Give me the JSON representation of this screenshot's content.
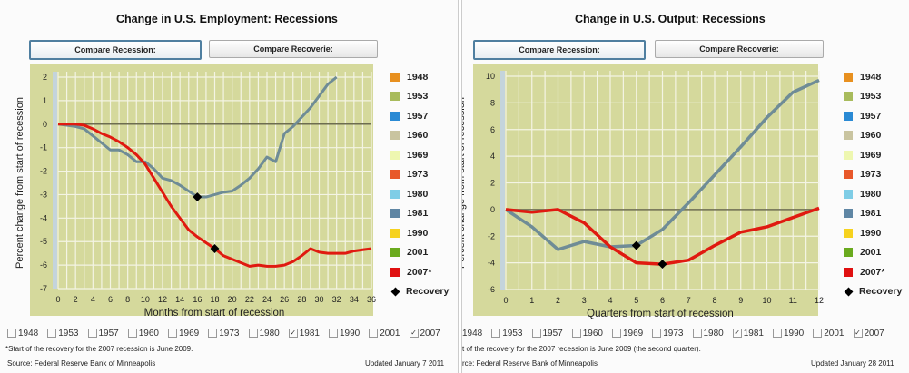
{
  "legend": {
    "items": [
      {
        "label": "1948",
        "color": "#e8901f"
      },
      {
        "label": "1953",
        "color": "#a8bb5c"
      },
      {
        "label": "1957",
        "color": "#2a8ad4"
      },
      {
        "label": "1960",
        "color": "#c9c4a0"
      },
      {
        "label": "1969",
        "color": "#eef7b0"
      },
      {
        "label": "1973",
        "color": "#e8582a"
      },
      {
        "label": "1980",
        "color": "#7fcde6"
      },
      {
        "label": "1981",
        "color": "#5f86a4"
      },
      {
        "label": "1990",
        "color": "#f6d21e"
      },
      {
        "label": "2001",
        "color": "#6aaa1e"
      },
      {
        "label": "2007*",
        "color": "#e01010"
      }
    ],
    "recovery_label": "Recovery"
  },
  "checkboxes": [
    {
      "label": "1948",
      "checked": false
    },
    {
      "label": "1953",
      "checked": false
    },
    {
      "label": "1957",
      "checked": false
    },
    {
      "label": "1960",
      "checked": false
    },
    {
      "label": "1969",
      "checked": false
    },
    {
      "label": "1973",
      "checked": false
    },
    {
      "label": "1980",
      "checked": false
    },
    {
      "label": "1981",
      "checked": true
    },
    {
      "label": "1990",
      "checked": false
    },
    {
      "label": "2001",
      "checked": false
    },
    {
      "label": "2007",
      "checked": true
    }
  ],
  "panels": [
    {
      "buttons": [
        "Compare Recession:",
        "Compare Recoverie:"
      ],
      "note": "*Start of the recovery for the 2007 recession is June 2009.",
      "source": "Source: Federal Reserve Bank of Minneapolis",
      "updated": "Updated January 7 2011"
    },
    {
      "buttons": [
        "Compare Recession:",
        "Compare Recoverie:"
      ],
      "note": "t of the recovery for the 2007 recession is June 2009 (the second quarter).",
      "source": "rce: Federal Reserve Bank of Minneapolis",
      "updated": "Updated January 28 2011"
    }
  ],
  "chart_data": [
    {
      "type": "line",
      "title": "Change in U.S. Employment: Recessions",
      "xlabel": "Months from start of recession",
      "ylabel": "Percent change from start of recession",
      "xlim": [
        0,
        36
      ],
      "ylim": [
        -7,
        2
      ],
      "xticks": [
        0,
        2,
        4,
        6,
        8,
        10,
        12,
        14,
        16,
        18,
        20,
        22,
        24,
        26,
        28,
        30,
        32,
        34,
        36
      ],
      "yticks": [
        2,
        1,
        0,
        -1,
        -2,
        -3,
        -4,
        -5,
        -6,
        -7
      ],
      "grid": true,
      "legend": "right",
      "series": [
        {
          "name": "1981",
          "color": "#6f8c96",
          "x": [
            0,
            1,
            2,
            3,
            4,
            5,
            6,
            7,
            8,
            9,
            10,
            11,
            12,
            13,
            14,
            15,
            16,
            17,
            18,
            19,
            20,
            21,
            22,
            23,
            24,
            25,
            26,
            27,
            28,
            29,
            30,
            31,
            32
          ],
          "y": [
            0,
            -0.05,
            -0.1,
            -0.2,
            -0.5,
            -0.8,
            -1.1,
            -1.1,
            -1.3,
            -1.6,
            -1.6,
            -1.9,
            -2.3,
            -2.4,
            -2.6,
            -2.85,
            -3.1,
            -3.1,
            -3.0,
            -2.9,
            -2.85,
            -2.6,
            -2.3,
            -1.9,
            -1.4,
            -1.6,
            -0.4,
            -0.1,
            0.3,
            0.7,
            1.2,
            1.7,
            2.0
          ],
          "recovery": [
            16,
            -3.1
          ]
        },
        {
          "name": "2007*",
          "color": "#e01a10",
          "x": [
            0,
            1,
            2,
            3,
            4,
            5,
            6,
            7,
            8,
            9,
            10,
            11,
            12,
            13,
            14,
            15,
            16,
            17,
            18,
            19,
            20,
            21,
            22,
            23,
            24,
            25,
            26,
            27,
            28,
            29,
            30,
            31,
            32,
            33,
            34,
            35,
            36
          ],
          "y": [
            0,
            0,
            0,
            -0.05,
            -0.2,
            -0.4,
            -0.55,
            -0.75,
            -1.0,
            -1.3,
            -1.7,
            -2.3,
            -2.9,
            -3.5,
            -4.0,
            -4.5,
            -4.8,
            -5.05,
            -5.3,
            -5.6,
            -5.75,
            -5.9,
            -6.05,
            -6.0,
            -6.05,
            -6.05,
            -6.0,
            -5.85,
            -5.6,
            -5.3,
            -5.45,
            -5.5,
            -5.5,
            -5.5,
            -5.4,
            -5.35,
            -5.3
          ],
          "recovery": [
            18,
            -5.3
          ]
        }
      ]
    },
    {
      "type": "line",
      "title": "Change in U.S. Output: Recessions",
      "xlabel": "Quarters from start of recession",
      "ylabel": "Percent change from start of recession",
      "xlim": [
        0,
        12
      ],
      "ylim": [
        -6,
        10
      ],
      "xticks": [
        0,
        1,
        2,
        3,
        4,
        5,
        6,
        7,
        8,
        9,
        10,
        11,
        12
      ],
      "yticks": [
        10,
        8,
        6,
        4,
        2,
        0,
        -2,
        -4,
        -6
      ],
      "grid": true,
      "legend": "right",
      "series": [
        {
          "name": "1981",
          "color": "#6f8c96",
          "x": [
            0,
            1,
            2,
            3,
            4,
            5,
            6,
            7,
            8,
            9,
            10,
            11,
            12
          ],
          "y": [
            0,
            -1.3,
            -3.0,
            -2.4,
            -2.8,
            -2.7,
            -1.5,
            0.5,
            2.6,
            4.7,
            6.9,
            8.8,
            9.7
          ],
          "recovery": [
            5,
            -2.7
          ]
        },
        {
          "name": "2007*",
          "color": "#e01a10",
          "x": [
            0,
            1,
            2,
            3,
            4,
            5,
            6,
            7,
            8,
            9,
            10,
            11,
            12
          ],
          "y": [
            0,
            -0.2,
            0,
            -1.0,
            -2.8,
            -4.0,
            -4.1,
            -3.8,
            -2.7,
            -1.7,
            -1.3,
            -0.6,
            0.1
          ],
          "recovery": [
            6,
            -4.1
          ]
        }
      ]
    }
  ]
}
